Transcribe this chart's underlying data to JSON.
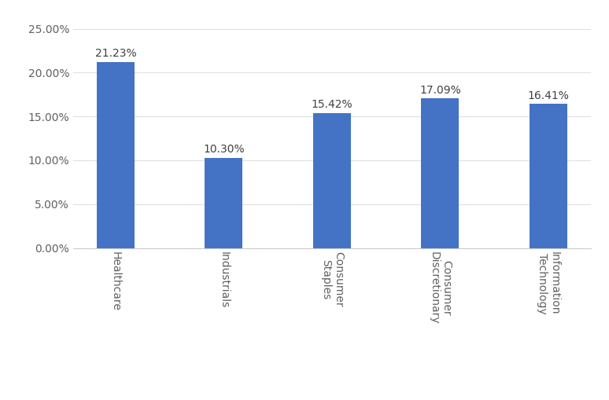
{
  "categories": [
    "Healthcare",
    "Industrials",
    "Consumer\nStaples",
    "Consumer\nDiscretionary",
    "Information\nTechnology"
  ],
  "values": [
    0.2123,
    0.103,
    0.1542,
    0.1709,
    0.1641
  ],
  "labels": [
    "21.23%",
    "10.30%",
    "15.42%",
    "17.09%",
    "16.41%"
  ],
  "bar_color": "#4472C4",
  "ylim": [
    0,
    0.26
  ],
  "yticks": [
    0.0,
    0.05,
    0.1,
    0.15,
    0.2,
    0.25
  ],
  "ytick_labels": [
    "0.00%",
    "5.00%",
    "10.00%",
    "15.00%",
    "20.00%",
    "25.00%"
  ],
  "background_color": "#ffffff",
  "label_fontsize": 10,
  "tick_fontsize": 10,
  "bar_width": 0.35
}
